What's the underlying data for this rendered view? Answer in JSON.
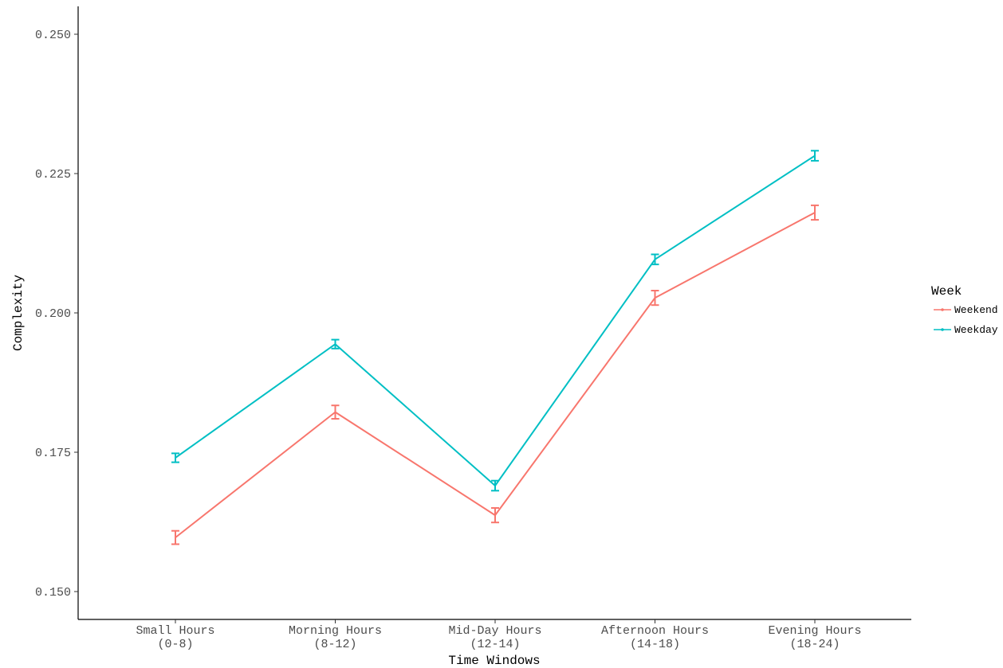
{
  "chart_data": {
    "type": "line",
    "xlabel": "Time Windows",
    "ylabel": "Complexity",
    "categories": [
      [
        "Small Hours",
        "(0-8)"
      ],
      [
        "Morning Hours",
        "(8-12)"
      ],
      [
        "Mid-Day Hours",
        "(12-14)"
      ],
      [
        "Afternoon Hours",
        "(14-18)"
      ],
      [
        "Evening Hours",
        "(18-24)"
      ]
    ],
    "ylim": [
      0.145,
      0.255
    ],
    "yticks": [
      0.15,
      0.175,
      0.2,
      0.225,
      0.25
    ],
    "ytick_labels": [
      "0.150",
      "0.175",
      "0.200",
      "0.225",
      "0.250"
    ],
    "grid": false,
    "legend": {
      "title": "Week",
      "position": "right"
    },
    "series": [
      {
        "name": "Weekend",
        "color": "#F8766D",
        "values": [
          0.1597,
          0.1822,
          0.1637,
          0.2027,
          0.218
        ],
        "errors": [
          0.0012,
          0.0012,
          0.0013,
          0.0013,
          0.0013
        ]
      },
      {
        "name": "Weekday",
        "color": "#00BFC4",
        "values": [
          0.174,
          0.1944,
          0.169,
          0.2096,
          0.2282
        ],
        "errors": [
          0.0008,
          0.0008,
          0.0009,
          0.0009,
          0.0009
        ]
      }
    ]
  }
}
